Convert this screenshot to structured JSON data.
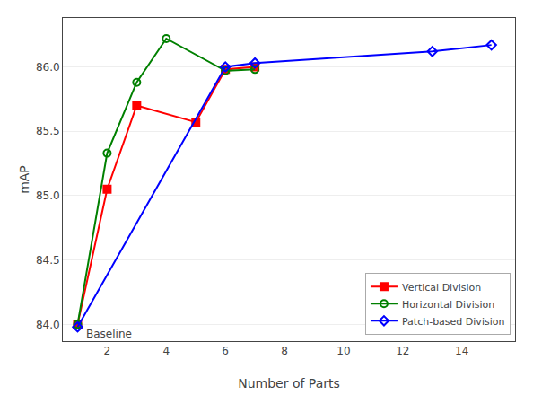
{
  "chart_data": {
    "type": "line",
    "xlabel": "Number of Parts",
    "ylabel": "mAP",
    "series": [
      {
        "name": "Vertical Division",
        "color": "red",
        "marker": "square",
        "x": [
          1,
          2,
          3,
          5,
          6,
          7
        ],
        "values": [
          84.0,
          85.05,
          85.7,
          85.57,
          85.98,
          86.0
        ]
      },
      {
        "name": "Horizontal Division",
        "color": "green",
        "marker": "circle-open",
        "x": [
          1,
          2,
          3,
          4,
          6,
          7
        ],
        "values": [
          84.0,
          85.33,
          85.88,
          86.22,
          85.97,
          85.98
        ]
      },
      {
        "name": "Patch-based Division",
        "color": "blue",
        "marker": "diamond-open",
        "x": [
          1,
          6,
          7,
          13,
          15
        ],
        "values": [
          83.98,
          86.0,
          86.03,
          86.12,
          86.17
        ]
      }
    ],
    "annotations": [
      {
        "text": "Baseline",
        "x": 1,
        "y": 84.0
      }
    ],
    "xlim": [
      0.5,
      15.8
    ],
    "ylim": [
      83.87,
      86.38
    ],
    "xticks": [
      2,
      4,
      6,
      8,
      10,
      12,
      14
    ],
    "yticks": [
      {
        "value": 84.0,
        "label": "84.0"
      },
      84.5,
      {
        "value": 85.0,
        "label": "85.0"
      },
      85.5,
      {
        "value": 86.0,
        "label": "86.0"
      }
    ],
    "grid": "y",
    "legend": "lower right"
  }
}
